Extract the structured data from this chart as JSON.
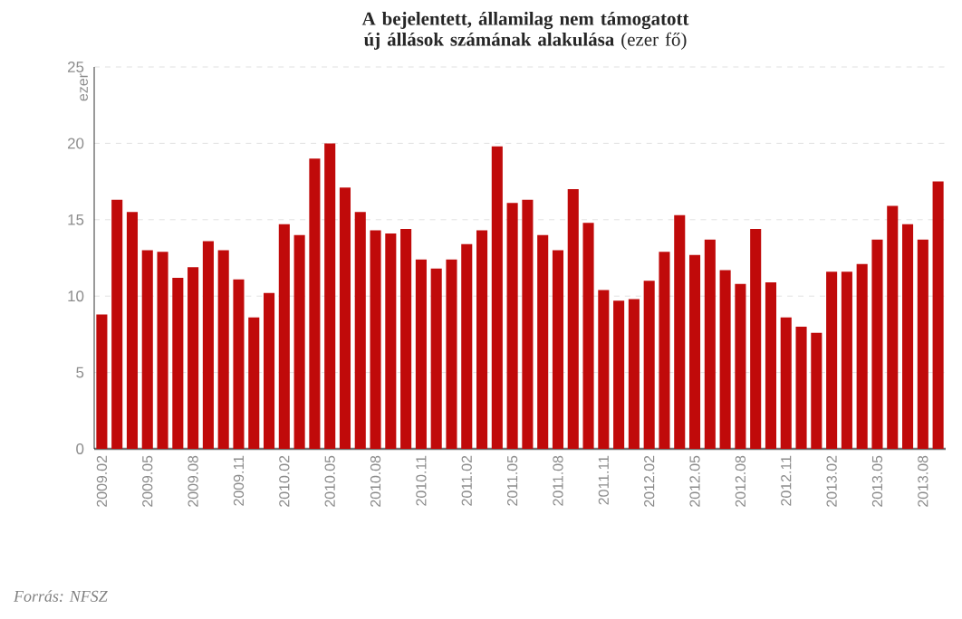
{
  "chart_data": {
    "type": "bar",
    "title": "**A bejelentett, államilag nem támogatott új állások számának alakulása** (ezer fő)",
    "ylabel": "ezer",
    "categories": [
      "2009.02",
      null,
      null,
      "2009.05",
      null,
      null,
      "2009.08",
      null,
      null,
      "2009.11",
      null,
      null,
      "2010.02",
      null,
      null,
      "2010.05",
      null,
      null,
      "2010.08",
      null,
      null,
      "2010.11",
      null,
      null,
      "2011.02",
      null,
      null,
      "2011.05",
      null,
      null,
      "2011.08",
      null,
      null,
      "2011.11",
      null,
      null,
      "2012.02",
      null,
      null,
      "2012.05",
      null,
      null,
      "2012.08",
      null,
      null,
      "2012.11",
      null,
      null,
      "2013.02",
      null,
      null,
      "2013.05",
      null,
      null,
      "2013.08",
      null
    ],
    "values": [
      8.8,
      16.3,
      15.5,
      13.0,
      12.9,
      11.2,
      11.9,
      13.6,
      13.0,
      11.1,
      8.6,
      10.2,
      14.7,
      14.0,
      19.0,
      20.0,
      17.1,
      15.5,
      14.3,
      14.1,
      14.4,
      12.4,
      11.8,
      12.4,
      13.4,
      14.3,
      19.8,
      16.1,
      16.3,
      14.0,
      13.0,
      17.0,
      14.8,
      10.4,
      9.7,
      9.8,
      11.0,
      12.9,
      15.3,
      12.7,
      13.7,
      11.7,
      10.8,
      14.4,
      10.9,
      8.6,
      8.0,
      7.6,
      11.6,
      11.6,
      12.1,
      13.7,
      15.9,
      14.7,
      13.7,
      17.5
    ],
    "color": "#c00a0a",
    "ylim": [
      0,
      25
    ],
    "yticks": [
      0,
      5,
      10,
      15,
      20,
      25
    ],
    "grid": "y",
    "annotations": [
      "Forrás: NFSZ"
    ]
  }
}
